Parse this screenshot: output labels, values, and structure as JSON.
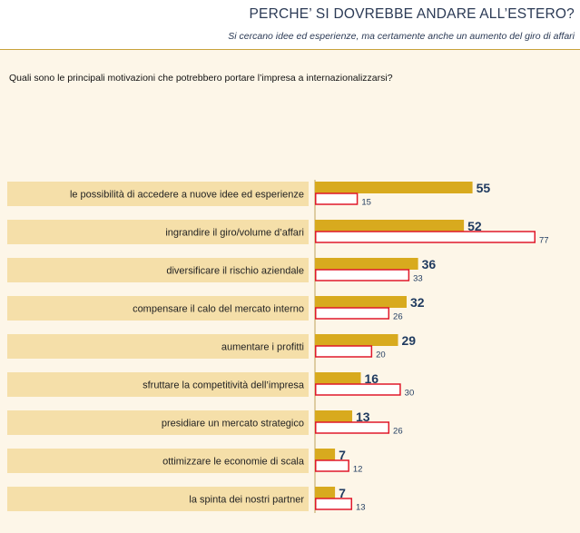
{
  "header": {
    "title": "PERCHE’ SI DOVREBBE ANDARE ALL’ESTERO?",
    "subtitle": "Si cercano idee ed esperienze, ma certamente anche un aumento del giro di affari"
  },
  "question": "Quali sono le principali motivazioni che potrebbero portare l’impresa a internazionalizzarsi?",
  "colors": {
    "series_a": "#d8aa1e",
    "series_b_border": "#e0182a",
    "series_b_fill": "#ffffff",
    "label_band": "#f5dfa9",
    "panel": "#fdf6e8",
    "value_text": "#1f3a5f"
  },
  "chart_data": {
    "type": "bar",
    "orientation": "horizontal",
    "categories": [
      "le possibilità di accedere a nuove idee ed esperienze",
      "ingrandire il giro/volume d’affari",
      "diversificare il rischio aziendale",
      "compensare il calo del mercato interno",
      "aumentare i profitti",
      "sfruttare la competitività dell’impresa",
      "presidiare un mercato strategico",
      "ottimizzare le economie di scala",
      "la spinta dei nostri partner"
    ],
    "series": [
      {
        "values": [
          55,
          52,
          36,
          32,
          29,
          16,
          13,
          7,
          7
        ]
      },
      {
        "values": [
          15,
          77,
          33,
          26,
          20,
          30,
          26,
          12,
          13
        ]
      }
    ],
    "xlim": [
      0,
      77
    ],
    "grid": false,
    "legend": "none"
  }
}
